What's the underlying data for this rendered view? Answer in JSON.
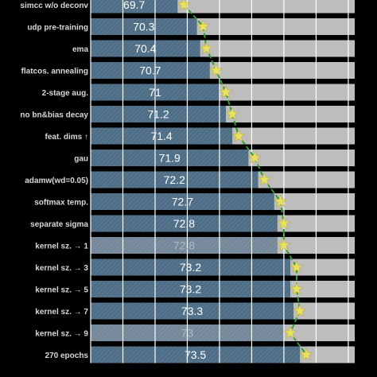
{
  "chart_data": {
    "type": "bar",
    "orientation": "horizontal",
    "categories": [
      "simcc w/o deconv",
      "udp pre-training",
      "ema",
      "flatcos. annealing",
      "2-stage aug.",
      "no bn&bias decay",
      "feat. dims ↑",
      "gau",
      "adamw(wd=0.05)",
      "softmax temp.",
      "separate sigma",
      "kernel sz. → 1",
      "kernel sz. → 3",
      "kernel sz. → 5",
      "kernel sz. → 7",
      "kernel sz. → 9",
      "270 epochs"
    ],
    "value_labels": [
      "69.7",
      "70.3",
      "70.4",
      "70.7",
      "71",
      "71.2",
      "71.4",
      "71.9",
      "72.2",
      "72.7",
      "72.8",
      "72.8",
      "73.2",
      "73.2",
      "73.3",
      "73",
      "73.5"
    ],
    "values": [
      69.7,
      70.3,
      70.4,
      70.7,
      71.0,
      71.2,
      71.4,
      71.9,
      72.2,
      72.7,
      72.8,
      72.8,
      73.2,
      73.2,
      73.3,
      73.0,
      73.5
    ],
    "faded": [
      false,
      false,
      false,
      false,
      false,
      false,
      false,
      false,
      false,
      false,
      false,
      true,
      false,
      false,
      false,
      true,
      false
    ],
    "line_series": {
      "marker": "star",
      "values": [
        69.7,
        70.3,
        70.4,
        70.7,
        71.0,
        71.2,
        71.4,
        71.9,
        72.2,
        72.7,
        72.8,
        72.8,
        73.2,
        73.2,
        73.3,
        73.0,
        73.5
      ]
    },
    "xlim": [
      67.0,
      75.2
    ],
    "grid": true,
    "colors": {
      "background": "#000000",
      "track": "#bdbdbd",
      "bar": "#4f6e86",
      "bar_faded": "#74889a",
      "gridline": "#ffffff",
      "line": "#2e9e2e",
      "star": "#e8e060",
      "label": "#d8d8d8"
    }
  }
}
